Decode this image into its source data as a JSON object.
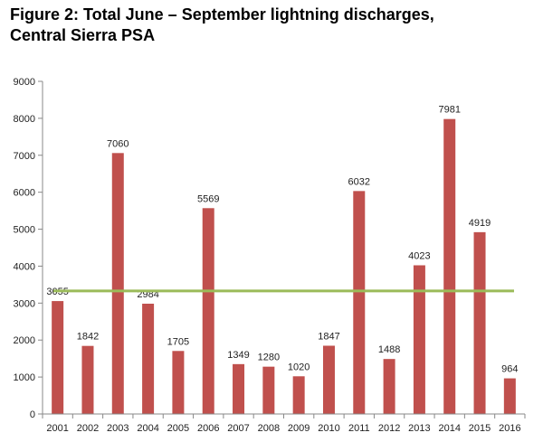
{
  "figure": {
    "title_line1": "Figure 2: Total June – September lightning discharges,",
    "title_line2": "Central Sierra PSA"
  },
  "chart_data": {
    "type": "bar",
    "title": "Figure 2: Total June – September lightning discharges, Central Sierra PSA",
    "xlabel": "",
    "ylabel": "",
    "categories": [
      "2001",
      "2002",
      "2003",
      "2004",
      "2005",
      "2006",
      "2007",
      "2008",
      "2009",
      "2010",
      "2011",
      "2012",
      "2013",
      "2014",
      "2015",
      "2016"
    ],
    "values": [
      3055,
      1842,
      7060,
      2984,
      1705,
      5569,
      1349,
      1280,
      1020,
      1847,
      6032,
      1488,
      4023,
      7981,
      4919,
      964
    ],
    "data_labels": [
      "3055",
      "1842",
      "7060",
      "2984",
      "1705",
      "5569",
      "1349",
      "1280",
      "1020",
      "1847",
      "6032",
      "1488",
      "4023",
      "7981",
      "4919",
      "964"
    ],
    "ylim": [
      0,
      9000
    ],
    "yticks": [
      0,
      1000,
      2000,
      3000,
      4000,
      5000,
      6000,
      7000,
      8000,
      9000
    ],
    "grid": false,
    "legend": "none",
    "reference_line": {
      "value": 3330,
      "color": "#9bbb59"
    },
    "colors": {
      "bar": "#c0504d",
      "axis": "#888888",
      "reference_line": "#9bbb59"
    }
  }
}
